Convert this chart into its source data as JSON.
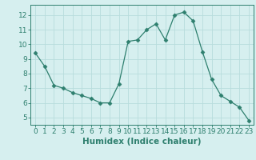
{
  "x": [
    0,
    1,
    2,
    3,
    4,
    5,
    6,
    7,
    8,
    9,
    10,
    11,
    12,
    13,
    14,
    15,
    16,
    17,
    18,
    19,
    20,
    21,
    22,
    23
  ],
  "y": [
    9.4,
    8.5,
    7.2,
    7.0,
    6.7,
    6.5,
    6.3,
    6.0,
    6.0,
    7.3,
    10.2,
    10.3,
    11.0,
    11.4,
    10.3,
    12.0,
    12.2,
    11.6,
    9.5,
    7.6,
    6.5,
    6.1,
    5.7,
    4.8
  ],
  "line_color": "#2e7f6e",
  "marker": "D",
  "marker_size": 2.5,
  "bg_color": "#d6efef",
  "grid_color": "#b8dcdc",
  "xlabel": "Humidex (Indice chaleur)",
  "ylim": [
    4.5,
    12.7
  ],
  "xlim": [
    -0.5,
    23.5
  ],
  "yticks": [
    5,
    6,
    7,
    8,
    9,
    10,
    11,
    12
  ],
  "xticks": [
    0,
    1,
    2,
    3,
    4,
    5,
    6,
    7,
    8,
    9,
    10,
    11,
    12,
    13,
    14,
    15,
    16,
    17,
    18,
    19,
    20,
    21,
    22,
    23
  ],
  "tick_color": "#2e7f6e",
  "label_color": "#2e7f6e",
  "font_size": 6.5,
  "xlabel_fontsize": 7.5
}
